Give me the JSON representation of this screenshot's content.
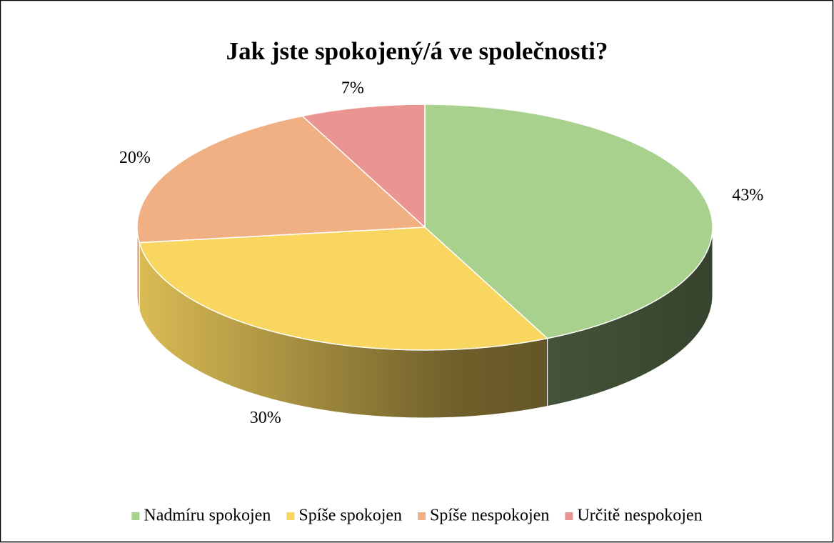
{
  "chart_data": {
    "type": "pie3d",
    "title": "Jak jste spokojený/á ve společnosti?",
    "categories": [
      "Nadmíru spokojen",
      "Spíše spokojen",
      "Spíše nespokojen",
      "Určitě nespokojen"
    ],
    "values": [
      43,
      30,
      20,
      7
    ],
    "value_labels": [
      "43%",
      "30%",
      "20%",
      "7%"
    ],
    "colors": [
      "#a9d18e",
      "#f8d660",
      "#f1b083",
      "#eb9593"
    ],
    "legend": "bottom"
  }
}
